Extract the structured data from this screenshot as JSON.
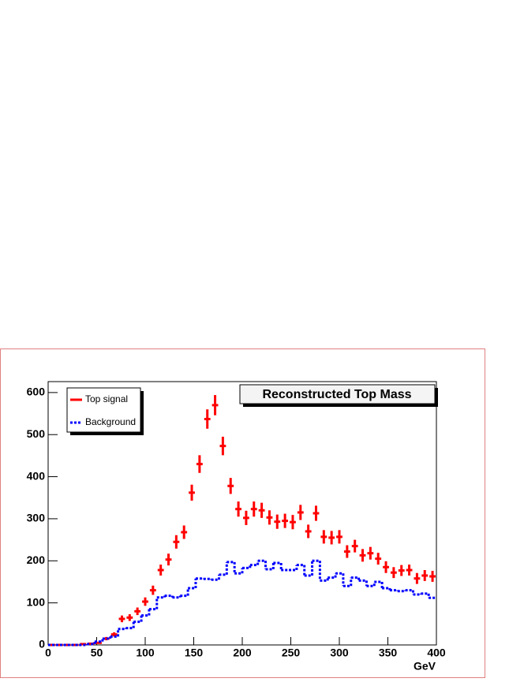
{
  "chart_data": {
    "type": "histogram",
    "title": "Reconstructed Top Mass",
    "x_label": "GeV",
    "bins": [
      0,
      8,
      16,
      24,
      32,
      40,
      48,
      56,
      64,
      72,
      80,
      88,
      96,
      104,
      112,
      120,
      128,
      136,
      144,
      152,
      160,
      168,
      176,
      184,
      192,
      200,
      208,
      216,
      224,
      232,
      240,
      248,
      256,
      264,
      272,
      280,
      288,
      296,
      304,
      312,
      320,
      328,
      336,
      344,
      352,
      360,
      368,
      376,
      384,
      392,
      400
    ],
    "series": [
      {
        "name": "Top signal",
        "color": "#ff0000",
        "style": "points",
        "values": [
          0,
          0,
          0,
          0,
          2,
          3,
          5,
          15,
          25,
          62,
          65,
          80,
          103,
          130,
          178,
          203,
          245,
          268,
          362,
          430,
          537,
          570,
          473,
          378,
          323,
          302,
          323,
          320,
          303,
          293,
          295,
          292,
          315,
          270,
          313,
          257,
          255,
          257,
          222,
          235,
          213,
          218,
          205,
          185,
          172,
          177,
          178,
          158,
          165,
          163
        ],
        "errors": [
          0,
          0,
          0,
          0,
          1,
          2,
          2,
          4,
          5,
          8,
          8,
          9,
          10,
          11,
          13,
          14,
          16,
          16,
          19,
          21,
          23,
          24,
          22,
          19,
          18,
          17,
          18,
          18,
          17,
          17,
          17,
          17,
          18,
          16,
          18,
          16,
          16,
          16,
          15,
          15,
          15,
          15,
          14,
          14,
          13,
          13,
          13,
          13,
          13,
          13
        ]
      },
      {
        "name": "Background",
        "color": "#0000ff",
        "style": "dashed-step",
        "values": [
          0,
          0,
          0,
          0,
          0,
          2,
          8,
          15,
          20,
          38,
          40,
          55,
          70,
          85,
          113,
          117,
          113,
          117,
          135,
          158,
          157,
          155,
          167,
          197,
          170,
          183,
          190,
          200,
          180,
          195,
          178,
          178,
          190,
          165,
          200,
          153,
          160,
          170,
          140,
          160,
          153,
          140,
          150,
          135,
          130,
          128,
          130,
          120,
          122,
          112
        ]
      }
    ],
    "xlim": [
      0,
      400
    ],
    "xticks": [
      0,
      50,
      100,
      150,
      200,
      250,
      300,
      350,
      400
    ],
    "ylim": [
      0,
      626
    ],
    "yticks": [
      0,
      100,
      200,
      300,
      400,
      500,
      600
    ],
    "legend": "top-left"
  }
}
